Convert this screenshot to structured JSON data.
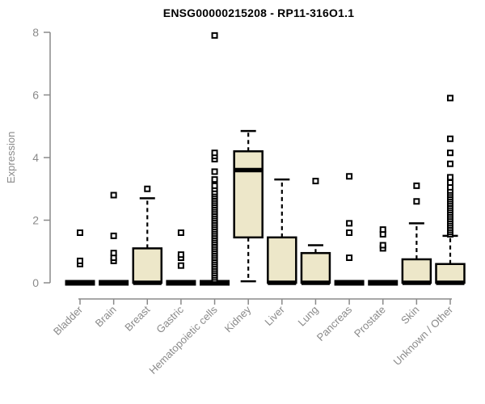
{
  "chart_data": {
    "type": "boxplot",
    "title": "ENSG00000215208 - RP11-316O1.1",
    "ylabel": "Expression",
    "xlabel": "",
    "ylim": [
      0,
      8
    ],
    "yticks": [
      0,
      2,
      4,
      6,
      8
    ],
    "grid": false,
    "legend": "none",
    "colors": {
      "box_fill": "#EDE7C9",
      "box_stroke": "#000000",
      "axis": "#8A8A8A",
      "outlier_fill": "#FFFFFF",
      "title_color": "#000000"
    },
    "categories": [
      "Bladder",
      "Brain",
      "Breast",
      "Gastric",
      "Hematopoietic cells",
      "Kidney",
      "Liver",
      "Lung",
      "Pancreas",
      "Prostate",
      "Skin",
      "Unknown / Other"
    ],
    "series": [
      {
        "name": "Bladder",
        "q1": 0,
        "median": 0,
        "q3": 0,
        "whisker_low": 0,
        "whisker_high": 0,
        "outliers": [
          0.6,
          0.7,
          1.6
        ]
      },
      {
        "name": "Brain",
        "q1": 0,
        "median": 0,
        "q3": 0,
        "whisker_low": 0,
        "whisker_high": 0,
        "outliers": [
          0.7,
          0.8,
          0.95,
          1.5,
          2.8
        ]
      },
      {
        "name": "Breast",
        "q1": 0,
        "median": 0,
        "q3": 1.1,
        "whisker_low": 0,
        "whisker_high": 2.7,
        "outliers": [
          3.0
        ]
      },
      {
        "name": "Gastric",
        "q1": 0,
        "median": 0,
        "q3": 0,
        "whisker_low": 0,
        "whisker_high": 0,
        "outliers": [
          0.55,
          0.8,
          0.9,
          1.6
        ]
      },
      {
        "name": "Hematopoietic cells",
        "q1": 0,
        "median": 0,
        "q3": 0,
        "whisker_low": 0,
        "whisker_high": 0,
        "outliers": [
          0.1,
          0.17,
          0.24,
          0.31,
          0.38,
          0.45,
          0.52,
          0.59,
          0.66,
          0.73,
          0.8,
          0.87,
          0.94,
          1.01,
          1.08,
          1.15,
          1.22,
          1.29,
          1.36,
          1.43,
          1.5,
          1.57,
          1.64,
          1.71,
          1.78,
          1.85,
          1.92,
          1.99,
          2.06,
          2.13,
          2.2,
          2.27,
          2.34,
          2.41,
          2.48,
          2.55,
          2.62,
          2.69,
          2.76,
          2.83,
          2.9,
          3.0,
          3.1,
          3.3,
          3.55,
          3.95,
          4.05,
          4.15,
          7.9
        ]
      },
      {
        "name": "Kidney",
        "q1": 1.45,
        "median": 3.6,
        "q3": 4.2,
        "whisker_low": 0.05,
        "whisker_high": 4.85,
        "outliers": []
      },
      {
        "name": "Liver",
        "q1": 0,
        "median": 0,
        "q3": 1.45,
        "whisker_low": 0,
        "whisker_high": 3.3,
        "outliers": []
      },
      {
        "name": "Lung",
        "q1": 0,
        "median": 0,
        "q3": 0.95,
        "whisker_low": 0,
        "whisker_high": 1.2,
        "outliers": [
          3.25
        ]
      },
      {
        "name": "Pancreas",
        "q1": 0,
        "median": 0,
        "q3": 0,
        "whisker_low": 0,
        "whisker_high": 0,
        "outliers": [
          0.8,
          1.6,
          1.9,
          3.4
        ]
      },
      {
        "name": "Prostate",
        "q1": 0,
        "median": 0,
        "q3": 0,
        "whisker_low": 0,
        "whisker_high": 0,
        "outliers": [
          1.1,
          1.2,
          1.55,
          1.7
        ]
      },
      {
        "name": "Skin",
        "q1": 0,
        "median": 0,
        "q3": 0.75,
        "whisker_low": 0,
        "whisker_high": 1.9,
        "outliers": [
          2.6,
          3.1
        ]
      },
      {
        "name": "Unknown / Other",
        "q1": 0,
        "median": 0,
        "q3": 0.6,
        "whisker_low": 0,
        "whisker_high": 1.5,
        "outliers": [
          1.55,
          1.62,
          1.69,
          1.76,
          1.83,
          1.9,
          1.97,
          2.04,
          2.11,
          2.18,
          2.25,
          2.32,
          2.39,
          2.46,
          2.53,
          2.6,
          2.67,
          2.74,
          2.81,
          2.88,
          2.95,
          3.05,
          3.2,
          3.37,
          3.8,
          4.15,
          4.6,
          5.9
        ]
      }
    ]
  }
}
